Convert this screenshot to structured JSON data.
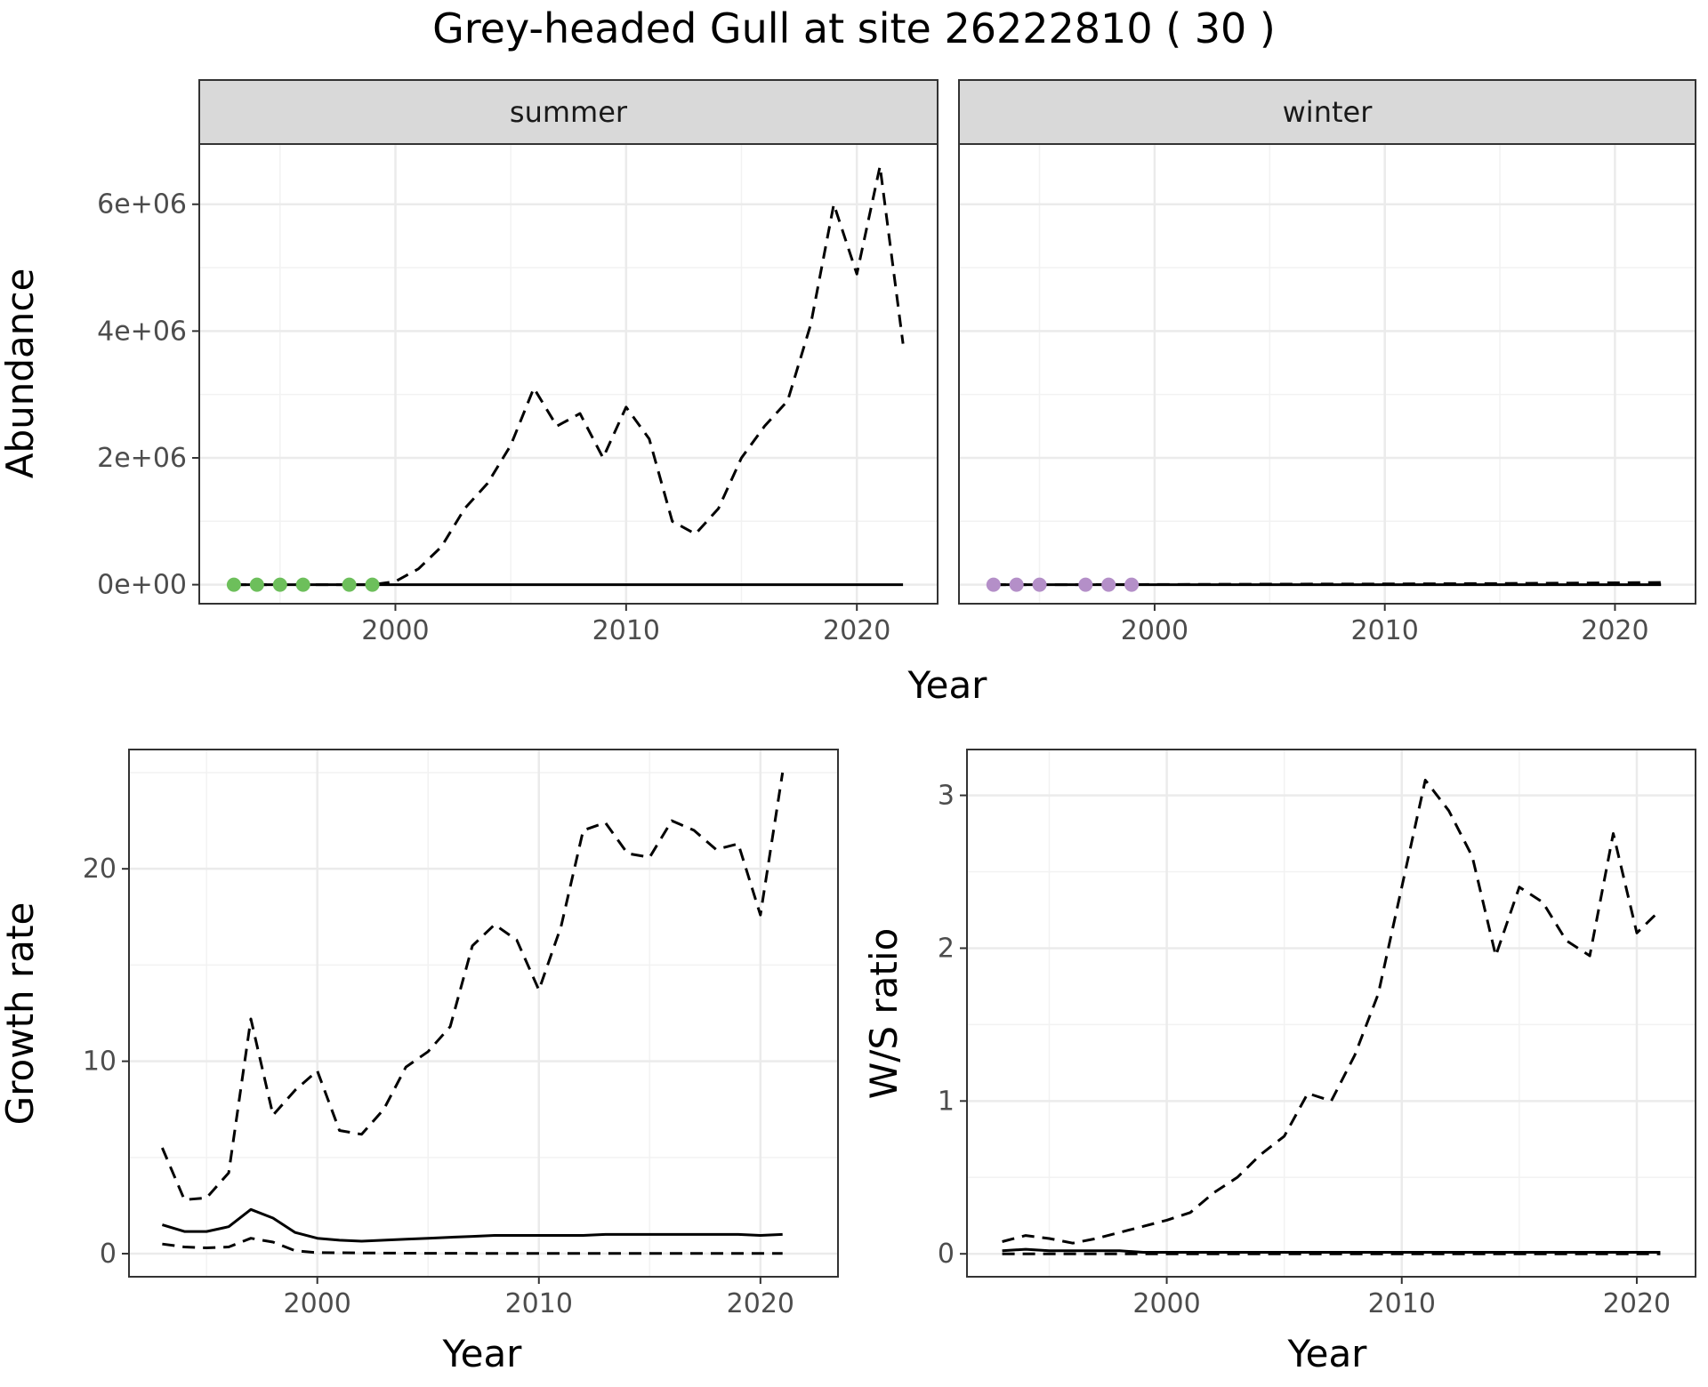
{
  "title": "Grey-headed Gull at site 26222810 ( 30 )",
  "colors": {
    "summer_points": "#6dbf5b",
    "winter_points": "#b48fc8",
    "line": "#000000"
  },
  "chart_data": [
    {
      "type": "line",
      "panel": "summer",
      "facet_label": "summer",
      "xlabel": "Year",
      "ylabel": "Abundance",
      "xlim": [
        1991.5,
        2023.5
      ],
      "ylim": [
        -300000,
        6950000
      ],
      "x_ticks": [
        2000,
        2010,
        2020
      ],
      "y_ticks": [
        0,
        2000000,
        4000000,
        6000000
      ],
      "y_tick_labels": [
        "0e+00",
        "2e+06",
        "4e+06",
        "6e+06"
      ],
      "grid": true,
      "series": [
        {
          "style": "dashed",
          "x": [
            1993,
            1994,
            1995,
            1996,
            1997,
            1998,
            1999,
            2000,
            2001,
            2002,
            2003,
            2004,
            2005,
            2006,
            2007,
            2008,
            2009,
            2010,
            2011,
            2012,
            2013,
            2014,
            2015,
            2016,
            2017,
            2018,
            2019,
            2020,
            2021,
            2022
          ],
          "y": [
            0,
            0,
            0,
            0,
            0,
            0,
            0,
            50000,
            250000,
            600000,
            1200000,
            1600000,
            2200000,
            3100000,
            2500000,
            2700000,
            2000000,
            2800000,
            2300000,
            1000000,
            800000,
            1200000,
            2000000,
            2500000,
            2900000,
            4100000,
            6000000,
            4900000,
            6600000,
            3800000
          ]
        },
        {
          "style": "solid",
          "x": [
            1993,
            2022
          ],
          "y": [
            0,
            0
          ]
        }
      ],
      "points": {
        "x": [
          1993,
          1994,
          1995,
          1996,
          1998,
          1999
        ],
        "y": [
          0,
          0,
          0,
          0,
          0,
          0
        ]
      }
    },
    {
      "type": "line",
      "panel": "winter",
      "facet_label": "winter",
      "xlabel": "Year",
      "ylabel": "",
      "xlim": [
        1991.5,
        2023.5
      ],
      "ylim": [
        -300000,
        6950000
      ],
      "x_ticks": [
        2000,
        2010,
        2020
      ],
      "grid": true,
      "series": [
        {
          "style": "dashed",
          "x": [
            1993,
            1996,
            2000,
            2005,
            2010,
            2015,
            2020,
            2022
          ],
          "y": [
            0,
            0,
            3000,
            8000,
            12000,
            18000,
            30000,
            35000
          ]
        },
        {
          "style": "solid",
          "x": [
            1993,
            2022
          ],
          "y": [
            0,
            0
          ]
        }
      ],
      "points": {
        "x": [
          1993,
          1994,
          1995,
          1997,
          1998,
          1999
        ],
        "y": [
          0,
          0,
          0,
          0,
          0,
          0
        ]
      }
    },
    {
      "type": "line",
      "panel": "growth",
      "xlabel": "Year",
      "ylabel": "Growth rate",
      "xlim": [
        1991.5,
        2023.5
      ],
      "ylim": [
        -1.2,
        26.2
      ],
      "x_ticks": [
        2000,
        2010,
        2020
      ],
      "y_ticks": [
        0,
        10,
        20
      ],
      "grid": true,
      "series": [
        {
          "style": "dashed",
          "x": [
            1993,
            1994,
            1995,
            1996,
            1997,
            1998,
            1999,
            2000,
            2001,
            2002,
            2003,
            2004,
            2005,
            2006,
            2007,
            2008,
            2009,
            2010,
            2011,
            2012,
            2013,
            2014,
            2015,
            2016,
            2017,
            2018,
            2019,
            2020,
            2021
          ],
          "y": [
            5.5,
            2.8,
            2.9,
            4.2,
            12.2,
            7.2,
            8.5,
            9.5,
            6.4,
            6.2,
            7.5,
            9.7,
            10.5,
            11.8,
            16.0,
            17.1,
            16.3,
            13.7,
            17.0,
            22.0,
            22.4,
            20.8,
            20.6,
            22.5,
            22.0,
            21.0,
            21.3,
            17.6,
            25.0
          ]
        },
        {
          "style": "solid",
          "x": [
            1993,
            1994,
            1995,
            1996,
            1997,
            1998,
            1999,
            2000,
            2001,
            2002,
            2003,
            2004,
            2005,
            2006,
            2007,
            2008,
            2009,
            2010,
            2011,
            2012,
            2013,
            2014,
            2015,
            2016,
            2017,
            2018,
            2019,
            2020,
            2021
          ],
          "y": [
            1.5,
            1.15,
            1.15,
            1.4,
            2.3,
            1.85,
            1.1,
            0.8,
            0.7,
            0.65,
            0.7,
            0.75,
            0.8,
            0.85,
            0.9,
            0.95,
            0.95,
            0.95,
            0.95,
            0.95,
            1.0,
            1.0,
            1.0,
            1.0,
            1.0,
            1.0,
            1.0,
            0.95,
            1.0
          ]
        },
        {
          "style": "dashed",
          "x": [
            1993,
            1994,
            1995,
            1996,
            1997,
            1998,
            1999,
            2000,
            2005,
            2010,
            2015,
            2021
          ],
          "y": [
            0.5,
            0.35,
            0.3,
            0.35,
            0.8,
            0.6,
            0.15,
            0.05,
            0.02,
            0.01,
            0.01,
            0.01
          ]
        }
      ]
    },
    {
      "type": "line",
      "panel": "ratio",
      "xlabel": "Year",
      "ylabel": "W/S ratio",
      "xlim": [
        1991.5,
        2022.5
      ],
      "ylim": [
        -0.15,
        3.3
      ],
      "x_ticks": [
        2000,
        2010,
        2020
      ],
      "y_ticks": [
        0,
        1,
        2,
        3
      ],
      "grid": true,
      "series": [
        {
          "style": "dashed",
          "x": [
            1993,
            1994,
            1995,
            1996,
            1997,
            1998,
            1999,
            2000,
            2001,
            2002,
            2003,
            2004,
            2005,
            2006,
            2007,
            2008,
            2009,
            2010,
            2011,
            2012,
            2013,
            2014,
            2015,
            2016,
            2017,
            2018,
            2019,
            2020,
            2021
          ],
          "y": [
            0.08,
            0.12,
            0.1,
            0.07,
            0.1,
            0.14,
            0.18,
            0.22,
            0.27,
            0.4,
            0.5,
            0.65,
            0.77,
            1.05,
            1.0,
            1.3,
            1.7,
            2.4,
            3.1,
            2.9,
            2.6,
            1.95,
            2.4,
            2.3,
            2.05,
            1.95,
            2.75,
            2.1,
            2.25
          ]
        },
        {
          "style": "solid",
          "x": [
            1993,
            1994,
            1995,
            1996,
            1997,
            1998,
            1999,
            2000,
            2005,
            2010,
            2015,
            2021
          ],
          "y": [
            0.02,
            0.03,
            0.02,
            0.02,
            0.02,
            0.02,
            0.01,
            0.01,
            0.01,
            0.01,
            0.01,
            0.01
          ]
        },
        {
          "style": "dashed",
          "x": [
            1993,
            2021
          ],
          "y": [
            0.0,
            0.0
          ]
        }
      ]
    }
  ]
}
